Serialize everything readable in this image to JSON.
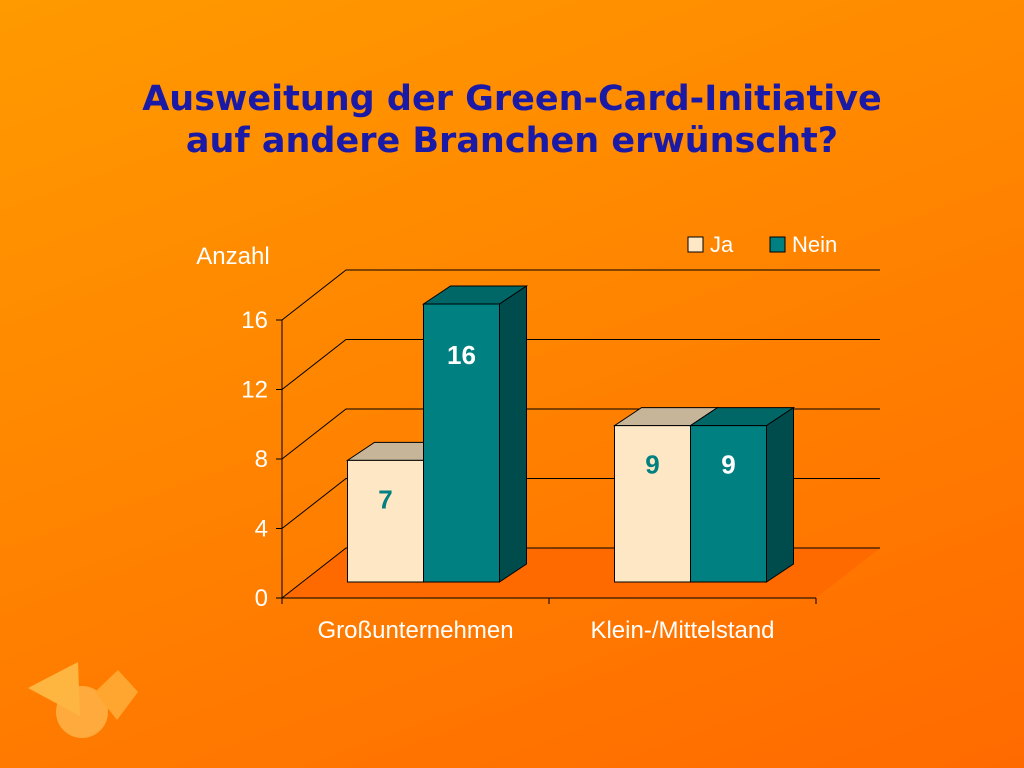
{
  "slide": {
    "title_line1": "Ausweitung der Green-Card-Initiative",
    "title_line2": "auf andere Branchen erwünscht?"
  },
  "colors": {
    "title": "#1a1aa6",
    "ja_front": "#fde7c4",
    "ja_top": "#c7b59a",
    "ja_side": "#b8a78f",
    "nein_front": "#008080",
    "nein_top": "#006666",
    "nein_side": "#004c4c",
    "floor": "#ff6a00",
    "label_text": "#008080"
  },
  "chart_data": {
    "type": "bar",
    "title": "Ausweitung der Green-Card-Initiative auf andere Branchen erwünscht?",
    "ylabel": "Anzahl",
    "xlabel": "",
    "categories": [
      "Großunternehmen",
      "Klein-/Mittelstand"
    ],
    "series": [
      {
        "name": "Ja",
        "values": [
          7,
          9
        ]
      },
      {
        "name": "Nein",
        "values": [
          16,
          9
        ]
      }
    ],
    "ylim": [
      0,
      16
    ],
    "yticks": [
      0,
      4,
      8,
      12,
      16
    ],
    "grid": true,
    "legend": "top-right",
    "data_labels": true
  }
}
